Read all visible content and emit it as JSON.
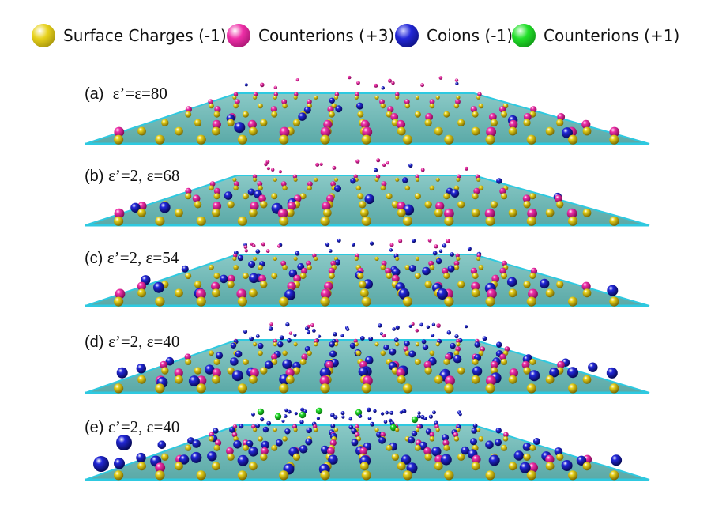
{
  "legend": {
    "items": [
      {
        "label": "Surface Charges (-1)",
        "color": "#e8d21c",
        "icon": "yellow-sphere"
      },
      {
        "label": "Counterions (+3)",
        "color": "#ef2fa8",
        "icon": "magenta-sphere"
      },
      {
        "label": "Coions (-1)",
        "color": "#2227d8",
        "icon": "blue-sphere"
      },
      {
        "label": "Counterions (+1)",
        "color": "#22e02a",
        "icon": "green-sphere"
      }
    ]
  },
  "colors": {
    "surface": "#5aa9a7",
    "surface_edge": "#2ec9e0"
  },
  "panels": [
    {
      "letter": "(a)",
      "eq": "ε’=ε=80"
    },
    {
      "letter": "(b)",
      "eq": "ε’=2,  ε=68"
    },
    {
      "letter": "(c)",
      "eq": "ε’=2,  ε=54"
    },
    {
      "letter": "(d)",
      "eq": "ε’=2,  ε=40"
    },
    {
      "letter": "(e)",
      "eq": "ε’=2,  ε=40"
    }
  ]
}
